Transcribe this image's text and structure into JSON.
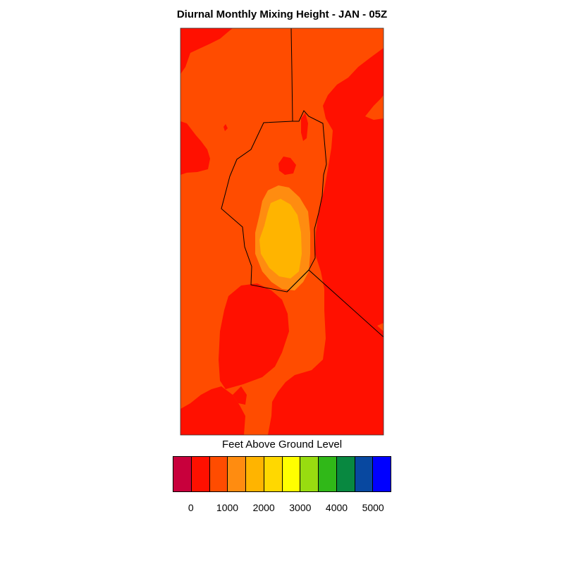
{
  "title": "Diurnal Monthly Mixing Height - JAN - 05Z",
  "colorbar": {
    "title": "Feet Above Ground Level",
    "colors": [
      "#c8003c",
      "#ff1000",
      "#ff4c00",
      "#ff8c10",
      "#ffb400",
      "#ffd800",
      "#ffff00",
      "#98dc10",
      "#30b818",
      "#088840",
      "#0848a0",
      "#0000ff"
    ],
    "tick_labels": [
      "0",
      "1000",
      "2000",
      "3000",
      "4000",
      "5000"
    ]
  },
  "map": {
    "background_color": "#ff1000",
    "level_colors": [
      "#ff4c00",
      "#ff8c10",
      "#ffb400"
    ]
  }
}
